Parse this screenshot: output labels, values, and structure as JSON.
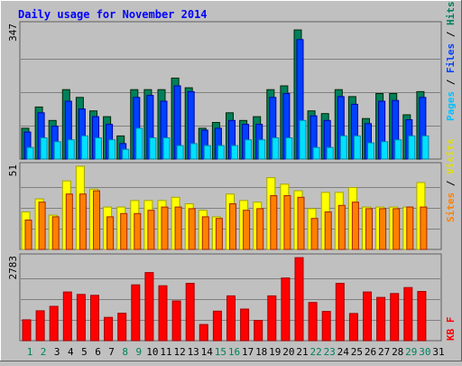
{
  "chart_data": [
    {
      "type": "bar",
      "title": "Daily usage for November 2014",
      "panel": "top",
      "ymax_label": "347",
      "ylim": [
        0,
        347
      ],
      "categories": [
        "1",
        "2",
        "3",
        "4",
        "5",
        "6",
        "7",
        "8",
        "9",
        "10",
        "11",
        "12",
        "13",
        "14",
        "15",
        "16",
        "17",
        "18",
        "19",
        "20",
        "21",
        "22",
        "23",
        "24",
        "25",
        "26",
        "27",
        "28",
        "29",
        "30",
        "31"
      ],
      "weekend_days": [
        "1",
        "2",
        "8",
        "9",
        "15",
        "16",
        "22",
        "23",
        "29",
        "30"
      ],
      "legend": [
        "Pages",
        "Files",
        "Hits"
      ],
      "series": [
        {
          "name": "Hits",
          "color": "#00805c",
          "values": [
            80,
            135,
            100,
            180,
            160,
            125,
            110,
            60,
            180,
            180,
            180,
            210,
            185,
            80,
            95,
            120,
            100,
            110,
            180,
            190,
            335,
            125,
            118,
            180,
            162,
            105,
            170,
            170,
            115,
            175,
            null
          ]
        },
        {
          "name": "Files",
          "color": "#0040ff",
          "values": [
            70,
            120,
            85,
            150,
            130,
            110,
            90,
            40,
            160,
            165,
            150,
            190,
            175,
            75,
            80,
            100,
            90,
            90,
            160,
            170,
            310,
            112,
            100,
            162,
            142,
            92,
            150,
            152,
            102,
            160,
            null
          ]
        },
        {
          "name": "Pages",
          "color": "#00e0ff",
          "values": [
            30,
            55,
            45,
            50,
            60,
            55,
            50,
            25,
            80,
            55,
            55,
            35,
            40,
            35,
            35,
            35,
            50,
            50,
            55,
            55,
            100,
            30,
            30,
            60,
            60,
            42,
            45,
            50,
            60,
            60,
            null
          ]
        }
      ]
    },
    {
      "type": "bar",
      "panel": "middle",
      "ymax_label": "51",
      "ylim": [
        0,
        51
      ],
      "categories": [
        "1",
        "2",
        "3",
        "4",
        "5",
        "6",
        "7",
        "8",
        "9",
        "10",
        "11",
        "12",
        "13",
        "14",
        "15",
        "16",
        "17",
        "18",
        "19",
        "20",
        "21",
        "22",
        "23",
        "24",
        "25",
        "26",
        "27",
        "28",
        "29",
        "30",
        "31"
      ],
      "legend": [
        "Sites",
        "Visits"
      ],
      "series": [
        {
          "name": "Visits",
          "color": "#ffff00",
          "values": [
            23,
            31,
            21,
            42,
            51,
            37,
            26,
            26,
            30,
            30,
            30,
            32,
            28,
            24,
            20,
            34,
            30,
            29,
            44,
            40,
            36,
            25,
            35,
            35,
            38,
            26,
            26,
            26,
            26,
            41,
            null
          ]
        },
        {
          "name": "Sites",
          "color": "#ff8000",
          "values": [
            18,
            29,
            20,
            34,
            34,
            36,
            20,
            22,
            22,
            24,
            26,
            26,
            25,
            20,
            19,
            28,
            24,
            25,
            33,
            33,
            32,
            19,
            23,
            27,
            29,
            25,
            25,
            25,
            26,
            26,
            null
          ]
        }
      ]
    },
    {
      "type": "bar",
      "panel": "bottom",
      "ymax_label": "2783",
      "ylim": [
        0,
        2783
      ],
      "categories": [
        "1",
        "2",
        "3",
        "4",
        "5",
        "6",
        "7",
        "8",
        "9",
        "10",
        "11",
        "12",
        "13",
        "14",
        "15",
        "16",
        "17",
        "18",
        "19",
        "20",
        "21",
        "22",
        "23",
        "24",
        "25",
        "26",
        "27",
        "28",
        "29",
        "30",
        "31"
      ],
      "legend": [
        "KB F"
      ],
      "series": [
        {
          "name": "KB F",
          "color": "#ff0000",
          "values": [
            700,
            1000,
            1150,
            1630,
            1550,
            1520,
            780,
            920,
            1870,
            2280,
            1840,
            1330,
            1920,
            540,
            990,
            1500,
            1060,
            680,
            1500,
            2100,
            2780,
            1280,
            980,
            1920,
            910,
            1630,
            1450,
            1580,
            1780,
            1650,
            null
          ]
        }
      ]
    }
  ]
}
